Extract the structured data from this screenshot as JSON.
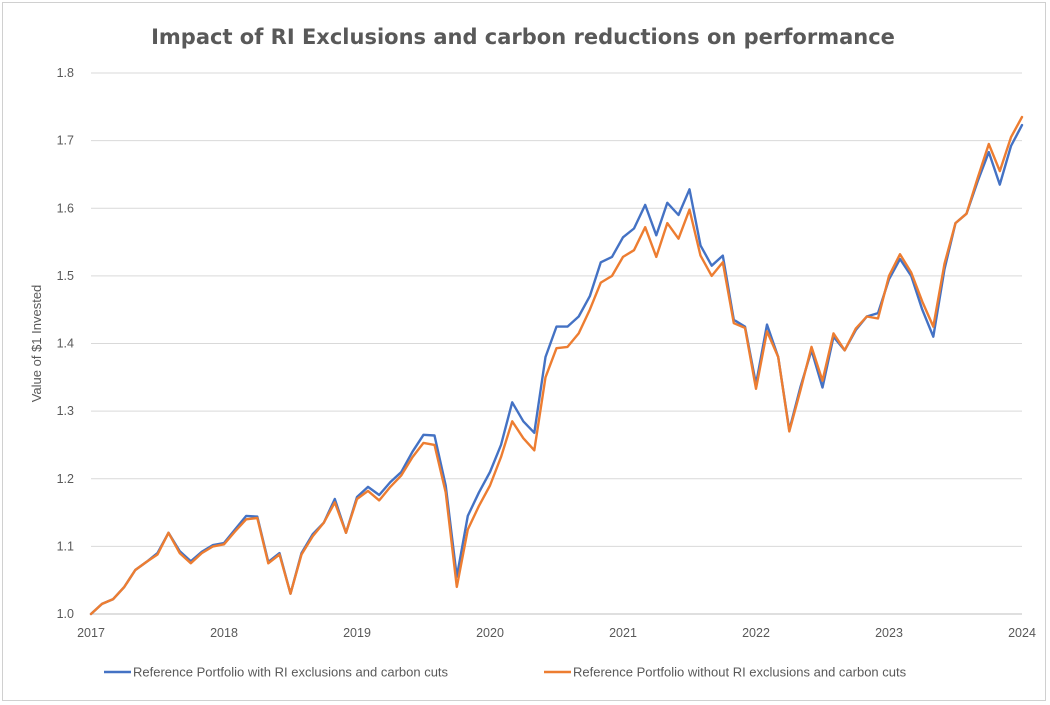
{
  "chart_data": {
    "type": "line",
    "title": "Impact of RI Exclusions and carbon reductions on performance",
    "xlabel": "",
    "ylabel": "Value of $1 Invested",
    "xlim": [
      2017,
      2024
    ],
    "ylim": [
      1.0,
      1.8
    ],
    "yticks": [
      "1.0",
      "1.1",
      "1.2",
      "1.3",
      "1.4",
      "1.5",
      "1.6",
      "1.7",
      "1.8"
    ],
    "xticks": [
      "2017",
      "2018",
      "2019",
      "2020",
      "2021",
      "2022",
      "2023",
      "2024"
    ],
    "grid": true,
    "legend_position": "bottom",
    "x": [
      2017.0,
      2017.083,
      2017.167,
      2017.25,
      2017.333,
      2017.417,
      2017.5,
      2017.583,
      2017.667,
      2017.75,
      2017.833,
      2017.917,
      2018.0,
      2018.083,
      2018.167,
      2018.25,
      2018.333,
      2018.417,
      2018.5,
      2018.583,
      2018.667,
      2018.75,
      2018.833,
      2018.917,
      2019.0,
      2019.083,
      2019.167,
      2019.25,
      2019.333,
      2019.417,
      2019.5,
      2019.583,
      2019.667,
      2019.75,
      2019.833,
      2019.917,
      2020.0,
      2020.083,
      2020.167,
      2020.25,
      2020.333,
      2020.417,
      2020.5,
      2020.583,
      2020.667,
      2020.75,
      2020.833,
      2020.917,
      2021.0,
      2021.083,
      2021.167,
      2021.25,
      2021.333,
      2021.417,
      2021.5,
      2021.583,
      2021.667,
      2021.75,
      2021.833,
      2021.917,
      2022.0,
      2022.083,
      2022.167,
      2022.25,
      2022.333,
      2022.417,
      2022.5,
      2022.583,
      2022.667,
      2022.75,
      2022.833,
      2022.917,
      2023.0,
      2023.083,
      2023.167,
      2023.25,
      2023.333,
      2023.417,
      2023.5,
      2023.583,
      2023.667,
      2023.75,
      2023.833,
      2023.917,
      2024.0
    ],
    "series": [
      {
        "name": "Reference Portfolio with RI exclusions and carbon cuts",
        "color": "#4472C4",
        "values": [
          1.0,
          1.015,
          1.022,
          1.04,
          1.065,
          1.077,
          1.09,
          1.12,
          1.093,
          1.078,
          1.092,
          1.102,
          1.105,
          1.125,
          1.145,
          1.144,
          1.077,
          1.09,
          1.03,
          1.09,
          1.118,
          1.135,
          1.17,
          1.12,
          1.173,
          1.188,
          1.176,
          1.195,
          1.21,
          1.24,
          1.265,
          1.264,
          1.19,
          1.055,
          1.145,
          1.18,
          1.21,
          1.25,
          1.313,
          1.285,
          1.268,
          1.38,
          1.425,
          1.425,
          1.44,
          1.47,
          1.52,
          1.528,
          1.557,
          1.57,
          1.605,
          1.56,
          1.608,
          1.59,
          1.628,
          1.545,
          1.515,
          1.53,
          1.435,
          1.425,
          1.34,
          1.428,
          1.38,
          1.272,
          1.335,
          1.39,
          1.335,
          1.41,
          1.39,
          1.42,
          1.44,
          1.445,
          1.495,
          1.525,
          1.5,
          1.45,
          1.41,
          1.51,
          1.578,
          1.592,
          1.64,
          1.683,
          1.635,
          1.692,
          1.723
        ]
      },
      {
        "name": "Reference Portfolio without RI exclusions and carbon cuts",
        "color": "#ED7D31",
        "values": [
          1.0,
          1.015,
          1.022,
          1.04,
          1.065,
          1.077,
          1.088,
          1.12,
          1.09,
          1.075,
          1.09,
          1.1,
          1.103,
          1.122,
          1.14,
          1.142,
          1.075,
          1.088,
          1.03,
          1.088,
          1.115,
          1.135,
          1.165,
          1.12,
          1.17,
          1.182,
          1.168,
          1.188,
          1.205,
          1.232,
          1.253,
          1.25,
          1.18,
          1.04,
          1.125,
          1.16,
          1.19,
          1.232,
          1.285,
          1.26,
          1.242,
          1.35,
          1.393,
          1.395,
          1.415,
          1.45,
          1.49,
          1.5,
          1.528,
          1.538,
          1.572,
          1.528,
          1.578,
          1.555,
          1.598,
          1.53,
          1.5,
          1.52,
          1.43,
          1.423,
          1.333,
          1.418,
          1.38,
          1.27,
          1.33,
          1.395,
          1.345,
          1.415,
          1.39,
          1.422,
          1.44,
          1.437,
          1.5,
          1.532,
          1.505,
          1.462,
          1.425,
          1.518,
          1.578,
          1.592,
          1.645,
          1.695,
          1.655,
          1.705,
          1.735
        ]
      }
    ]
  }
}
